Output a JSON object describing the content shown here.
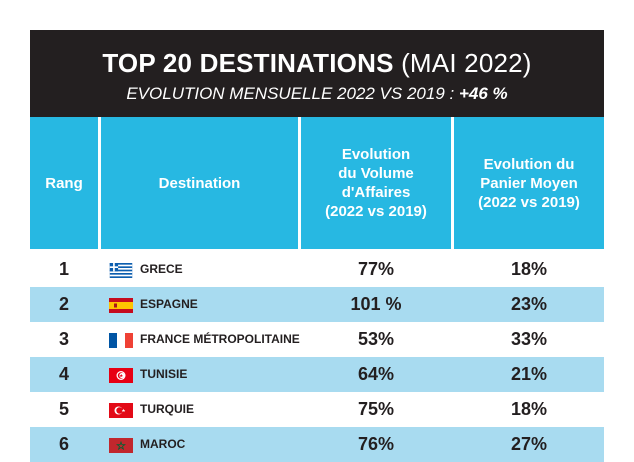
{
  "header": {
    "title_bold": "TOP 20 DESTINATIONS",
    "title_light": "(MAI 2022)",
    "subtitle_main": "EVOLUTION MENSUELLE 2022 VS 2019 :",
    "subtitle_value": "+46 %"
  },
  "columns": {
    "rang": "Rang",
    "destination": "Destination",
    "volume": [
      "Evolution",
      "du Volume",
      "d'Affaires",
      "(2022 vs 2019)"
    ],
    "panier": [
      "Evolution du",
      "Panier Moyen",
      "(2022 vs 2019)"
    ]
  },
  "colors": {
    "header_bg": "#231f20",
    "column_header_bg": "#27b8e2",
    "alt_row_bg": "#a8dbf0"
  },
  "rows": [
    {
      "rank": "1",
      "flag": "greece-flag-icon",
      "destination": "GRECE",
      "volume": "77%",
      "panier": "18%"
    },
    {
      "rank": "2",
      "flag": "spain-flag-icon",
      "destination": "ESPAGNE",
      "volume": "101 %",
      "panier": "23%"
    },
    {
      "rank": "3",
      "flag": "france-flag-icon",
      "destination": "FRANCE MÉTROPOLITAINE",
      "volume": "53%",
      "panier": "33%"
    },
    {
      "rank": "4",
      "flag": "tunisia-flag-icon",
      "destination": "TUNISIE",
      "volume": "64%",
      "panier": "21%"
    },
    {
      "rank": "5",
      "flag": "turkey-flag-icon",
      "destination": "TURQUIE",
      "volume": "75%",
      "panier": "18%"
    },
    {
      "rank": "6",
      "flag": "morocco-flag-icon",
      "destination": "MAROC",
      "volume": "76%",
      "panier": "27%"
    }
  ]
}
